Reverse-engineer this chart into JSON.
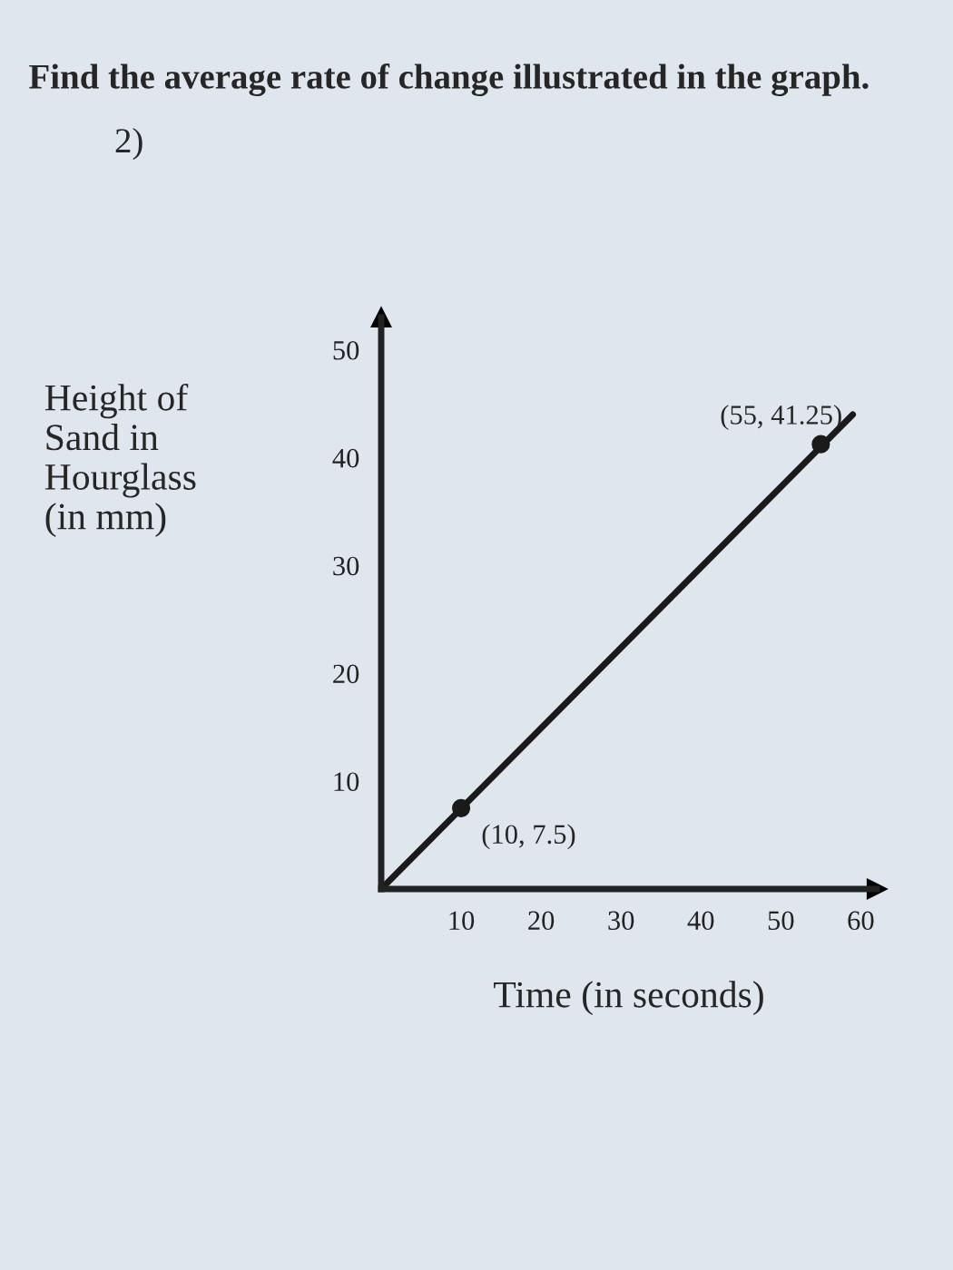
{
  "chart_data": {
    "type": "line",
    "title": "Find the average rate of change illustrated in the graph.",
    "xlabel": "Time (in seconds)",
    "ylabel": "Height of\nSand in\nHourglass\n(in mm)",
    "annotations": [
      "2)",
      {
        "text": "(10, 7.5)",
        "x": 10,
        "y": 7.5
      },
      {
        "text": "(55, 41.25)",
        "x": 55,
        "y": 41.25
      }
    ],
    "series": [
      {
        "color": "#1a1a1a",
        "x": [
          0,
          59
        ],
        "values": [
          0,
          44
        ],
        "marker": "none"
      },
      {
        "type": "scatter",
        "color": "#1a1a1a",
        "x": [
          10,
          55
        ],
        "values": [
          7.5,
          41.25
        ],
        "marker": "circle"
      }
    ],
    "xlim": [
      0,
      62
    ],
    "ylim": [
      0,
      53
    ],
    "xticks": [
      10,
      20,
      30,
      40,
      50,
      60
    ],
    "yticks": [
      10,
      20,
      30,
      40,
      50
    ],
    "grid": false,
    "legend": false
  }
}
